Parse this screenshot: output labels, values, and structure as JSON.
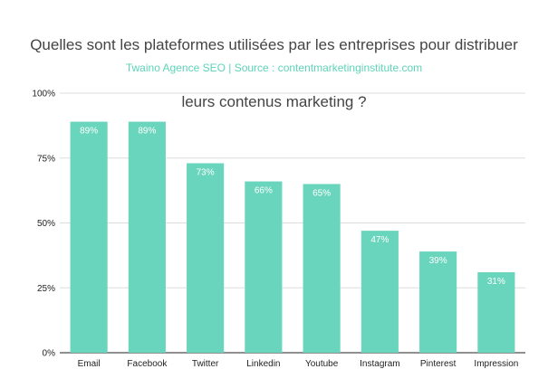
{
  "chart_data": {
    "type": "bar",
    "title": "Quelles sont les plateformes utilisées par les entreprises pour distribuer leurs contenus marketing ?",
    "title_lines": [
      "Quelles sont les plateformes utilisées par les entreprises pour distribuer",
      "leurs contenus marketing ?"
    ],
    "subtitle": "Twaino Agence SEO | Source : contentmarketinginstitute.com",
    "categories": [
      "Email",
      "Facebook",
      "Twitter",
      "Linkedin",
      "Youtube",
      "Instagram",
      "Pinterest",
      "Impression"
    ],
    "values": [
      89,
      89,
      73,
      66,
      65,
      47,
      39,
      31
    ],
    "data_labels": [
      "89%",
      "89%",
      "73%",
      "66%",
      "65%",
      "47%",
      "39%",
      "31%"
    ],
    "y_ticks": [
      0,
      25,
      50,
      75,
      100
    ],
    "y_tick_labels": [
      "0%",
      "25%",
      "50%",
      "75%",
      "100%"
    ],
    "ylim": [
      0,
      100
    ],
    "xlabel": "",
    "ylabel": "",
    "grid": true,
    "legend": "none",
    "colors": {
      "bar": "#6ad5bd",
      "grid": "#dddddd",
      "axis": "#222222",
      "title": "#444444",
      "subtitle": "#5fd3b8"
    }
  }
}
